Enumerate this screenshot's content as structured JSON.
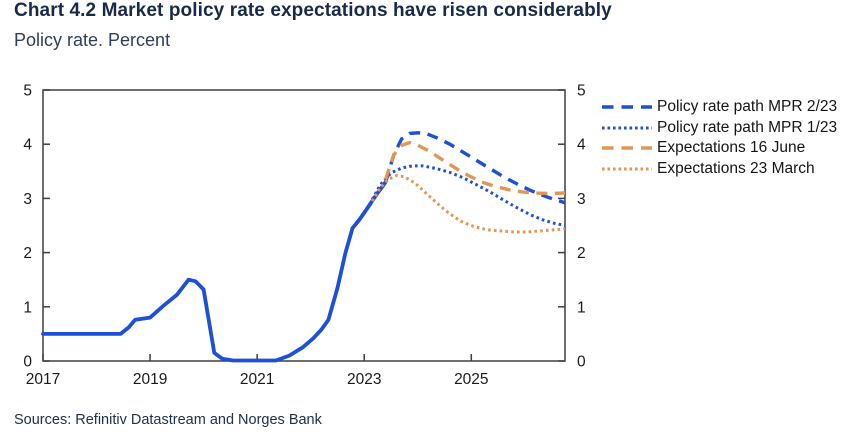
{
  "header": {
    "title": "Chart 4.2 Market policy rate expectations have risen considerably",
    "subtitle": "Policy rate. Percent"
  },
  "source": "Sources: Refinitiv Datastream and Norges Bank",
  "colors": {
    "blue": "#1d4fd7",
    "orange": "#e39556",
    "axis": "#3f3f3f",
    "tick_text": "#1a1a1a"
  },
  "legend": {
    "items": [
      {
        "label": "Policy rate path MPR 2/23",
        "color": "blue",
        "style": "dashed"
      },
      {
        "label": "Policy rate path MPR 1/23",
        "color": "blue",
        "style": "dotted"
      },
      {
        "label": "Expectations 16 June",
        "color": "orange",
        "style": "dashed"
      },
      {
        "label": "Expectations 23 March",
        "color": "orange",
        "style": "dotted"
      }
    ],
    "position": "right"
  },
  "chart_data": {
    "type": "line",
    "title": "Chart 4.2 Market policy rate expectations have risen considerably",
    "subtitle": "Policy rate. Percent",
    "xlabel": "",
    "ylabel": "Percent",
    "xlim": [
      2017,
      2026.75
    ],
    "ylim": [
      0,
      5
    ],
    "x_ticks": [
      2017,
      2019,
      2021,
      2023,
      2025
    ],
    "y_ticks": [
      0,
      1,
      2,
      3,
      4,
      5
    ],
    "y_axis_on_both_sides": true,
    "grid": false,
    "series": [
      {
        "name": "Policy rate (historical)",
        "color": "blue",
        "style": "solid",
        "points": [
          [
            2017.0,
            0.5
          ],
          [
            2018.45,
            0.5
          ],
          [
            2018.6,
            0.62
          ],
          [
            2018.72,
            0.76
          ],
          [
            2019.0,
            0.8
          ],
          [
            2019.25,
            1.02
          ],
          [
            2019.5,
            1.22
          ],
          [
            2019.72,
            1.5
          ],
          [
            2019.85,
            1.47
          ],
          [
            2020.0,
            1.32
          ],
          [
            2020.2,
            0.15
          ],
          [
            2020.35,
            0.04
          ],
          [
            2020.55,
            0.01
          ],
          [
            2021.35,
            0.01
          ],
          [
            2021.6,
            0.1
          ],
          [
            2021.85,
            0.25
          ],
          [
            2022.05,
            0.42
          ],
          [
            2022.2,
            0.58
          ],
          [
            2022.33,
            0.76
          ],
          [
            2022.5,
            1.35
          ],
          [
            2022.65,
            2.0
          ],
          [
            2022.78,
            2.45
          ],
          [
            2022.92,
            2.62
          ],
          [
            2023.08,
            2.85
          ],
          [
            2023.25,
            3.1
          ],
          [
            2023.4,
            3.3
          ]
        ]
      },
      {
        "name": "Policy rate path MPR 2/23",
        "color": "blue",
        "style": "dashed",
        "points": [
          [
            2023.4,
            3.3
          ],
          [
            2023.55,
            3.8
          ],
          [
            2023.7,
            4.1
          ],
          [
            2023.85,
            4.2
          ],
          [
            2024.0,
            4.21
          ],
          [
            2024.15,
            4.2
          ],
          [
            2024.35,
            4.12
          ],
          [
            2024.6,
            4.0
          ],
          [
            2024.85,
            3.85
          ],
          [
            2025.1,
            3.7
          ],
          [
            2025.35,
            3.55
          ],
          [
            2025.6,
            3.4
          ],
          [
            2025.85,
            3.27
          ],
          [
            2026.1,
            3.15
          ],
          [
            2026.35,
            3.05
          ],
          [
            2026.55,
            2.98
          ],
          [
            2026.75,
            2.92
          ]
        ]
      },
      {
        "name": "Policy rate path MPR 1/23",
        "color": "blue",
        "style": "dotted",
        "points": [
          [
            2023.15,
            2.98
          ],
          [
            2023.3,
            3.25
          ],
          [
            2023.5,
            3.47
          ],
          [
            2023.7,
            3.56
          ],
          [
            2023.9,
            3.6
          ],
          [
            2024.1,
            3.6
          ],
          [
            2024.35,
            3.55
          ],
          [
            2024.6,
            3.48
          ],
          [
            2024.85,
            3.38
          ],
          [
            2025.1,
            3.25
          ],
          [
            2025.35,
            3.12
          ],
          [
            2025.6,
            2.97
          ],
          [
            2025.85,
            2.83
          ],
          [
            2026.1,
            2.7
          ],
          [
            2026.35,
            2.6
          ],
          [
            2026.55,
            2.54
          ],
          [
            2026.75,
            2.5
          ]
        ]
      },
      {
        "name": "Expectations 16 June",
        "color": "orange",
        "style": "dashed",
        "points": [
          [
            2023.4,
            3.35
          ],
          [
            2023.55,
            3.8
          ],
          [
            2023.7,
            3.98
          ],
          [
            2023.85,
            4.03
          ],
          [
            2024.0,
            3.98
          ],
          [
            2024.2,
            3.88
          ],
          [
            2024.45,
            3.72
          ],
          [
            2024.7,
            3.56
          ],
          [
            2024.95,
            3.42
          ],
          [
            2025.2,
            3.3
          ],
          [
            2025.45,
            3.22
          ],
          [
            2025.7,
            3.16
          ],
          [
            2025.95,
            3.12
          ],
          [
            2026.2,
            3.1
          ],
          [
            2026.45,
            3.09
          ],
          [
            2026.75,
            3.1
          ]
        ]
      },
      {
        "name": "Expectations 23 March",
        "color": "orange",
        "style": "dotted",
        "points": [
          [
            2023.15,
            2.95
          ],
          [
            2023.3,
            3.2
          ],
          [
            2023.45,
            3.35
          ],
          [
            2023.6,
            3.42
          ],
          [
            2023.75,
            3.4
          ],
          [
            2023.95,
            3.28
          ],
          [
            2024.15,
            3.1
          ],
          [
            2024.35,
            2.92
          ],
          [
            2024.55,
            2.75
          ],
          [
            2024.8,
            2.58
          ],
          [
            2025.05,
            2.48
          ],
          [
            2025.3,
            2.42
          ],
          [
            2025.55,
            2.4
          ],
          [
            2025.8,
            2.38
          ],
          [
            2026.05,
            2.38
          ],
          [
            2026.3,
            2.4
          ],
          [
            2026.55,
            2.42
          ],
          [
            2026.75,
            2.44
          ]
        ]
      }
    ]
  }
}
